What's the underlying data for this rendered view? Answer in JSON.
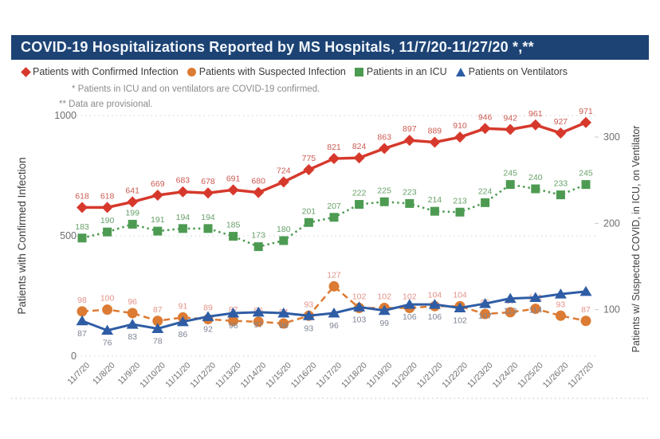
{
  "header": {
    "title": "COVID-19 Hospitalizations Reported by MS Hospitals, 11/7/20-11/27/20 *,**"
  },
  "notes": [
    "* Patients in ICU and on ventilators are COVID-19 confirmed.",
    "** Data are provisional."
  ],
  "legend": [
    {
      "label": "Patients with Confirmed Infection",
      "marker": "diamond",
      "color": "#d6392c"
    },
    {
      "label": "Patients with Suspected Infection",
      "marker": "circle",
      "color": "#dc7b33"
    },
    {
      "label": "Patients in an ICU",
      "marker": "square",
      "color": "#4d9b52"
    },
    {
      "label": "Patients on Ventilators",
      "marker": "triangle",
      "color": "#2f5da5"
    }
  ],
  "chart_data": {
    "type": "line",
    "title": "COVID-19 Hospitalizations Reported by MS Hospitals, 11/7/20-11/27/20 *,**",
    "x": [
      "11/7/20",
      "11/8/20",
      "11/9/20",
      "11/10/20",
      "11/11/20",
      "11/12/20",
      "11/13/20",
      "11/14/20",
      "11/15/20",
      "11/16/20",
      "11/17/20",
      "11/18/20",
      "11/19/20",
      "11/20/20",
      "11/21/20",
      "11/22/20",
      "11/23/20",
      "11/24/20",
      "11/25/20",
      "11/26/20",
      "11/27/20"
    ],
    "left_axis": {
      "title": "Patients with Confirmed Infection",
      "ticks": [
        0,
        500,
        1000
      ],
      "range": [
        0,
        1000
      ]
    },
    "right_axis": {
      "title": "Patients w/ Suspected COVID, in ICU, on Ventilator",
      "ticks": [
        100,
        200,
        300
      ],
      "range": [
        0,
        300
      ]
    },
    "grid": "dotted-horizontal",
    "legend_position": "top",
    "series": [
      {
        "name": "Patients with Confirmed Infection",
        "axis": "left",
        "marker": "diamond",
        "line": "solid",
        "color": "#d6392c",
        "label_color": "#cc5a52",
        "label_position": "above",
        "values": [
          618,
          618,
          641,
          669,
          683,
          678,
          691,
          680,
          724,
          775,
          821,
          824,
          863,
          897,
          889,
          910,
          946,
          942,
          961,
          927,
          971
        ]
      },
      {
        "name": "Patients in an ICU",
        "axis": "right",
        "marker": "square",
        "line": "dotted",
        "color": "#4d9b52",
        "label_color": "#68a169",
        "label_position": "above",
        "values": [
          183,
          190,
          199,
          191,
          194,
          194,
          185,
          173,
          180,
          201,
          207,
          222,
          225,
          223,
          214,
          213,
          224,
          245,
          240,
          233,
          245
        ]
      },
      {
        "name": "Patients with Suspected Infection",
        "axis": "right",
        "marker": "circle",
        "line": "dashed",
        "color": "#dc7b33",
        "label_color": "#e4928a",
        "label_position": "above",
        "values": [
          98,
          100,
          96,
          87,
          91,
          89,
          87,
          86,
          84,
          93,
          127,
          102,
          102,
          102,
          104,
          104,
          95,
          97,
          101,
          93,
          87
        ]
      },
      {
        "name": "Patients on Ventilators",
        "axis": "right",
        "marker": "triangle",
        "line": "solid",
        "color": "#2f5da5",
        "label_color": "#7e8494",
        "label_position": "below",
        "values": [
          87,
          76,
          83,
          78,
          86,
          92,
          96,
          97,
          96,
          93,
          96,
          103,
          99,
          106,
          106,
          102,
          107,
          113,
          114,
          118,
          121
        ],
        "hidden_label_indices": [
          19,
          20
        ]
      }
    ]
  }
}
